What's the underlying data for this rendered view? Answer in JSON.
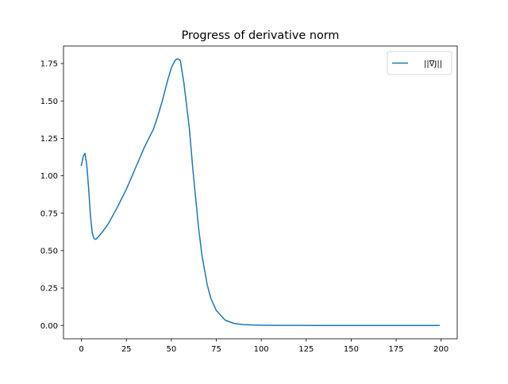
{
  "chart_data": {
    "type": "line",
    "title": "Progress of derivative norm",
    "xlabel": "",
    "ylabel": "",
    "xlim": [
      -9.95,
      208.95
    ],
    "ylim": [
      -0.089,
      1.867
    ],
    "x_ticks": [
      0,
      25,
      50,
      75,
      100,
      125,
      150,
      175,
      200
    ],
    "x_tick_labels": [
      "0",
      "25",
      "50",
      "75",
      "100",
      "125",
      "150",
      "175",
      "200"
    ],
    "y_ticks": [
      0.0,
      0.25,
      0.5,
      0.75,
      1.0,
      1.25,
      1.5,
      1.75
    ],
    "y_tick_labels": [
      "0.00",
      "0.25",
      "0.50",
      "0.75",
      "1.00",
      "1.25",
      "1.50",
      "1.75"
    ],
    "grid": false,
    "legend": {
      "placement": "upper right"
    },
    "series": [
      {
        "name": "||∇J||",
        "color": "#1f77b4",
        "x": [
          0,
          1,
          2,
          3,
          4,
          5,
          6,
          7,
          8,
          10,
          12,
          15,
          20,
          25,
          30,
          35,
          40,
          42,
          45,
          48,
          50,
          52,
          53,
          54,
          55,
          57,
          60,
          62,
          65,
          67,
          70,
          72,
          75,
          80,
          85,
          90,
          95,
          100,
          110,
          120,
          130,
          150,
          175,
          199
        ],
        "y": [
          1.07,
          1.13,
          1.15,
          1.07,
          0.92,
          0.74,
          0.62,
          0.58,
          0.575,
          0.6,
          0.63,
          0.68,
          0.79,
          0.91,
          1.05,
          1.19,
          1.31,
          1.38,
          1.5,
          1.64,
          1.72,
          1.77,
          1.78,
          1.78,
          1.77,
          1.62,
          1.32,
          1.04,
          0.67,
          0.47,
          0.27,
          0.18,
          0.1,
          0.035,
          0.013,
          0.006,
          0.003,
          0.0015,
          0.0005,
          0.0002,
          0.0001,
          0,
          0,
          0
        ]
      }
    ]
  }
}
